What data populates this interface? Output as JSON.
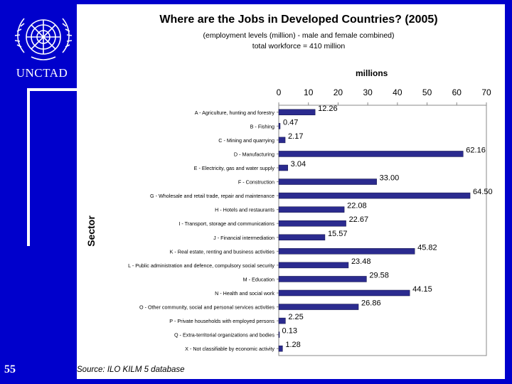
{
  "slide": {
    "org_label": "UNCTAD",
    "slide_number": "55",
    "source": "Source: ILO KILM 5 database"
  },
  "colors": {
    "background": "#0000cc",
    "bar": "#2b2b8f",
    "panel": "#ffffff"
  },
  "chart_data": {
    "type": "bar",
    "orientation": "horizontal",
    "title": "Where are the Jobs in Developed Countries? (2005)",
    "subtitle_lines": [
      "(employment levels (million) - male and female combined)",
      "total workforce = 410 million"
    ],
    "xlabel": "millions",
    "ylabel": "Sector",
    "xlim": [
      0,
      70
    ],
    "xticks": [
      "0",
      "10",
      "20",
      "30",
      "40",
      "50",
      "60",
      "70"
    ],
    "categories": [
      "A - Agriculture, hunting and forestry",
      "B - Fishing",
      "C - Mining and quarrying",
      "D - Manufacturing",
      "E - Electricity, gas and water supply",
      "F - Construction",
      "G - Wholesale and retail trade, repair and maintenance",
      "H - Hotels and restaurants",
      "I - Transport, storage and communications",
      "J - Financial intermediation",
      "K - Real estate, renting and business activities",
      "L - Public administration and defence, compulsory social security",
      "M - Education",
      "N - Health and social work",
      "O - Other community, social and personal services activities",
      "P - Private households with employed persons",
      "Q - Extra-territorial organizations and bodies",
      "X - Not classifiable by economic activity"
    ],
    "values": [
      12.26,
      0.47,
      2.17,
      62.16,
      3.04,
      33.0,
      64.5,
      22.08,
      22.67,
      15.57,
      45.82,
      23.48,
      29.58,
      44.15,
      26.86,
      2.25,
      0.13,
      1.28
    ],
    "value_labels": [
      "12.26",
      "0.47",
      "2.17",
      "62.16",
      "3.04",
      "33.00",
      "64.50",
      "22.08",
      "22.67",
      "15.57",
      "45.82",
      "23.48",
      "29.58",
      "44.15",
      "26.86",
      "2.25",
      "0.13",
      "1.28"
    ]
  }
}
